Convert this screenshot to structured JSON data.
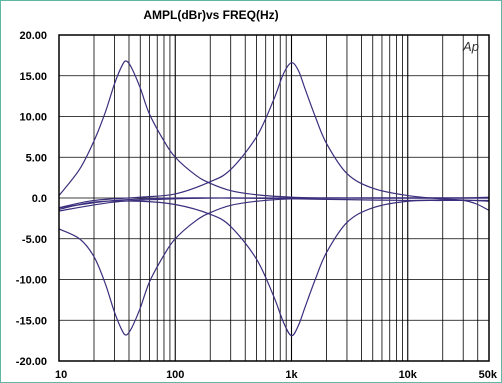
{
  "chart_data": {
    "type": "line",
    "title": "AMPL(dBr)vs FREQ(Hz)",
    "xlabel": "",
    "ylabel": "",
    "x_scale": "log",
    "xlim": [
      10,
      50000
    ],
    "ylim": [
      -20,
      20
    ],
    "grid": true,
    "y_ticks": [
      20,
      15,
      10,
      5,
      0,
      -5,
      -10,
      -15,
      -20
    ],
    "y_tick_labels": [
      "20.00",
      "15.00",
      "10.00",
      "5.00",
      "0.0",
      "-5.00",
      "-10.00",
      "-15.00",
      "-20.00"
    ],
    "x_ticks": [
      10,
      100,
      1000,
      10000,
      50000
    ],
    "x_tick_labels": [
      "10",
      "100",
      "1k",
      "10k",
      "50k"
    ],
    "watermark": "Ap",
    "line_color": "#3a2f7c",
    "series": [
      {
        "x": [
          10,
          15,
          20,
          25,
          30,
          35,
          38,
          42,
          50,
          60,
          80,
          100,
          150,
          200,
          300,
          500,
          1000,
          2000,
          5000,
          10000,
          20000,
          50000
        ],
        "y": [
          0.3,
          3.5,
          7.0,
          10.5,
          14.0,
          16.3,
          16.8,
          16.0,
          13.5,
          10.3,
          7.0,
          5.0,
          2.8,
          1.8,
          0.9,
          0.4,
          0.1,
          0.0,
          0.0,
          0.0,
          0.0,
          0.0
        ]
      },
      {
        "x": [
          10,
          15,
          20,
          25,
          30,
          35,
          38,
          42,
          50,
          60,
          80,
          100,
          150,
          200,
          300,
          500,
          1000,
          2000,
          5000,
          10000,
          20000,
          50000
        ],
        "y": [
          -3.8,
          -5.0,
          -7.2,
          -10.5,
          -14.0,
          -16.3,
          -16.8,
          -16.0,
          -13.5,
          -10.3,
          -7.0,
          -5.0,
          -2.8,
          -1.8,
          -0.9,
          -0.4,
          -0.1,
          0.0,
          0.0,
          0.0,
          0.0,
          0.0
        ]
      },
      {
        "x": [
          10,
          20,
          50,
          100,
          200,
          300,
          500,
          700,
          850,
          1000,
          1150,
          1300,
          1600,
          2000,
          3000,
          5000,
          10000,
          20000,
          50000
        ],
        "y": [
          -1.2,
          -0.3,
          0.1,
          0.5,
          2.0,
          3.5,
          7.5,
          12.0,
          15.2,
          16.6,
          15.6,
          13.5,
          10.0,
          6.7,
          3.0,
          1.2,
          0.3,
          -0.1,
          -0.4
        ],
        "rel_y": [
          0.0
        ]
      },
      {
        "x": [
          10,
          20,
          50,
          100,
          200,
          300,
          500,
          700,
          850,
          1000,
          1150,
          1300,
          1600,
          2000,
          3000,
          5000,
          10000,
          20000,
          50000
        ],
        "y": [
          -1.4,
          -0.5,
          -0.4,
          -0.8,
          -2.0,
          -3.5,
          -7.5,
          -12.0,
          -15.2,
          -16.9,
          -15.6,
          -13.5,
          -10.0,
          -6.7,
          -3.0,
          -1.2,
          -0.4,
          -0.3,
          -0.3
        ]
      },
      {
        "x": [
          10,
          30,
          100,
          300,
          1000,
          3000,
          10000,
          30000,
          50000
        ],
        "y": [
          -1.6,
          -0.5,
          -0.1,
          0.0,
          0.0,
          0.0,
          0.0,
          0.0,
          0.1
        ]
      },
      {
        "x": [
          10,
          30,
          100,
          300,
          1000,
          3000,
          10000,
          30000,
          50000
        ],
        "y": [
          -1.2,
          -0.3,
          0.0,
          0.0,
          -0.1,
          -0.2,
          -0.3,
          -0.3,
          -1.5
        ]
      }
    ]
  }
}
